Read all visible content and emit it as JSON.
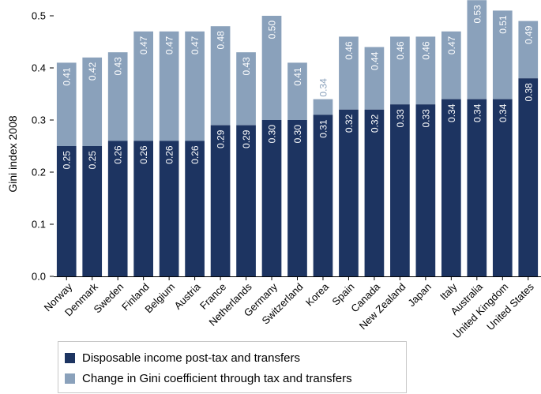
{
  "chart_data": {
    "type": "bar",
    "stacked": true,
    "title": "",
    "xlabel": "",
    "ylabel": "Gini index 2008",
    "ylim": [
      0,
      0.5
    ],
    "yticks": [
      "0.0",
      "0.1",
      "0.2",
      "0.3",
      "0.4",
      "0.5"
    ],
    "grid": false,
    "legend_position": "bottom",
    "categories": [
      "Norway",
      "Denmark",
      "Sweden",
      "Finland",
      "Belgium",
      "Austria",
      "France",
      "Netherlands",
      "Germany",
      "Switzerland",
      "Korea",
      "Spain",
      "Canada",
      "New Zealand",
      "Japan",
      "Italy",
      "Australia",
      "United Kingdom",
      "United States"
    ],
    "series": [
      {
        "name": "Disposable income post-tax and transfers",
        "color": "#1d3461",
        "values": [
          0.25,
          0.25,
          0.26,
          0.26,
          0.26,
          0.26,
          0.29,
          0.29,
          0.3,
          0.3,
          0.31,
          0.32,
          0.32,
          0.33,
          0.33,
          0.34,
          0.34,
          0.34,
          0.38
        ],
        "labels": [
          "0.25",
          "0.25",
          "0.26",
          "0.26",
          "0.26",
          "0.26",
          "0.29",
          "0.29",
          "0.30",
          "0.30",
          "0.31",
          "0.32",
          "0.32",
          "0.33",
          "0.33",
          "0.34",
          "0.34",
          "0.34",
          "0.38"
        ]
      },
      {
        "name": "Change in Gini coefficient through tax and transfers",
        "color": "#8aa1bb",
        "totals": [
          0.41,
          0.42,
          0.43,
          0.47,
          0.47,
          0.47,
          0.48,
          0.43,
          0.5,
          0.41,
          0.34,
          0.46,
          0.44,
          0.46,
          0.46,
          0.47,
          0.53,
          0.51,
          0.49
        ],
        "labels": [
          "0.41",
          "0.42",
          "0.43",
          "0.47",
          "0.47",
          "0.47",
          "0.48",
          "0.43",
          "0.50",
          "0.41",
          "0.34",
          "0.46",
          "0.44",
          "0.46",
          "0.46",
          "0.47",
          "0.53",
          "0.51",
          "0.49"
        ]
      }
    ]
  },
  "legend": {
    "items": [
      {
        "label": "Disposable income post-tax and transfers",
        "color": "#1d3461"
      },
      {
        "label": "Change in Gini coefficient through tax and transfers",
        "color": "#8aa1bb"
      }
    ]
  }
}
